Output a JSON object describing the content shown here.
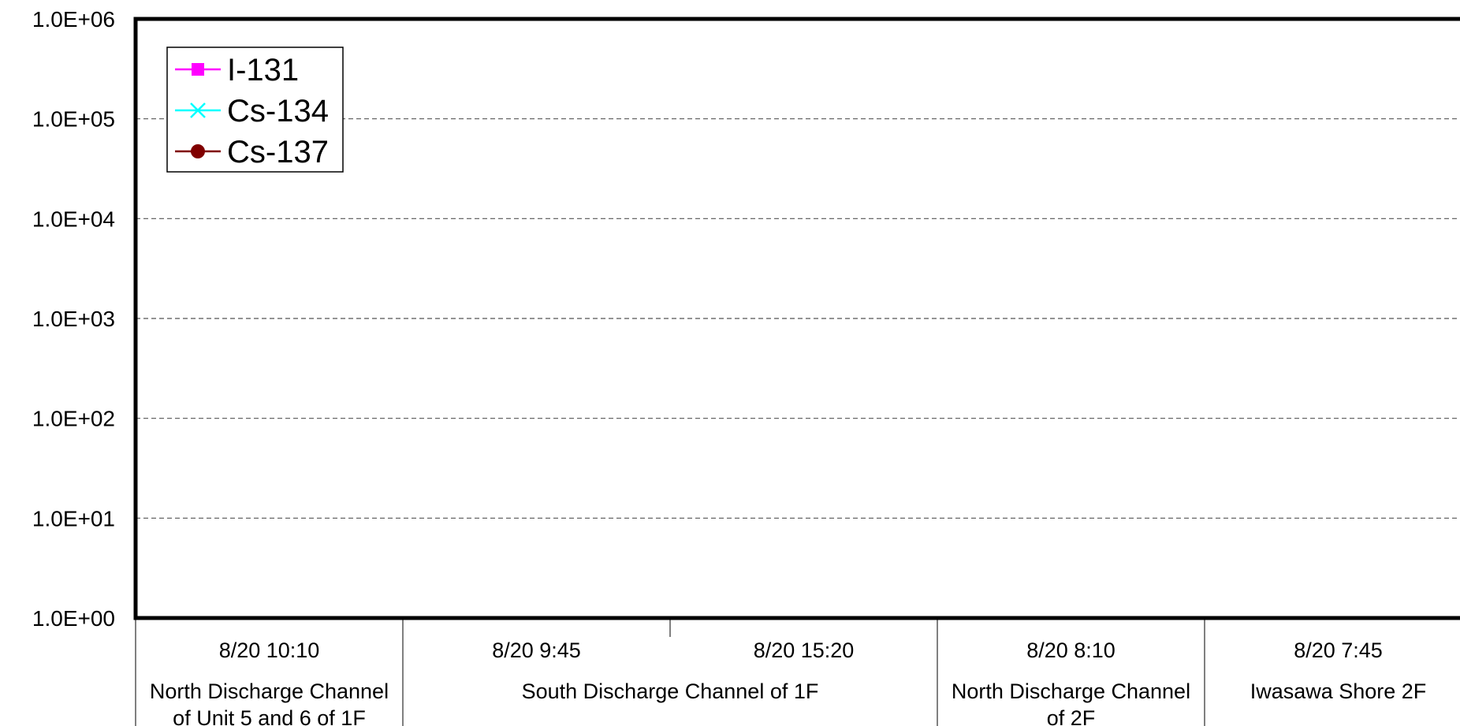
{
  "chart_data": {
    "type": "line",
    "title": "",
    "xlabel": "",
    "ylabel": "",
    "y_scale": "log",
    "ylim": [
      1,
      1000000
    ],
    "y_tick_values": [
      1,
      10,
      100,
      1000,
      10000,
      100000,
      1000000
    ],
    "y_tick_labels": [
      "1.0E+00",
      "1.0E+01",
      "1.0E+02",
      "1.0E+03",
      "1.0E+04",
      "1.0E+05",
      "1.0E+06"
    ],
    "grid": "dashed horizontal",
    "legend_position": "top-left",
    "categories": [
      "8/20 10:10",
      "8/20 9:45",
      "8/20 15:20",
      "8/20 8:10",
      "8/20 7:45"
    ],
    "locations": [
      {
        "lines": [
          "North Discharge Channel",
          "of Unit 5 and 6 of 1F"
        ],
        "span": 1
      },
      {
        "lines": [
          "South Discharge Channel of 1F"
        ],
        "span": 2
      },
      {
        "lines": [
          "North Discharge Channel",
          "of 2F"
        ],
        "span": 1
      },
      {
        "lines": [
          "Iwasawa Shore 2F"
        ],
        "span": 1
      }
    ],
    "series": [
      {
        "name": "I-131",
        "color": "#FF00FF",
        "marker": "square",
        "values": [
          null,
          null,
          null,
          null,
          null
        ]
      },
      {
        "name": "Cs-134",
        "color": "#00FFFF",
        "marker": "x",
        "values": [
          null,
          null,
          null,
          null,
          null
        ]
      },
      {
        "name": "Cs-137",
        "color": "#800000",
        "marker": "circle",
        "values": [
          null,
          null,
          null,
          null,
          null
        ]
      }
    ]
  }
}
